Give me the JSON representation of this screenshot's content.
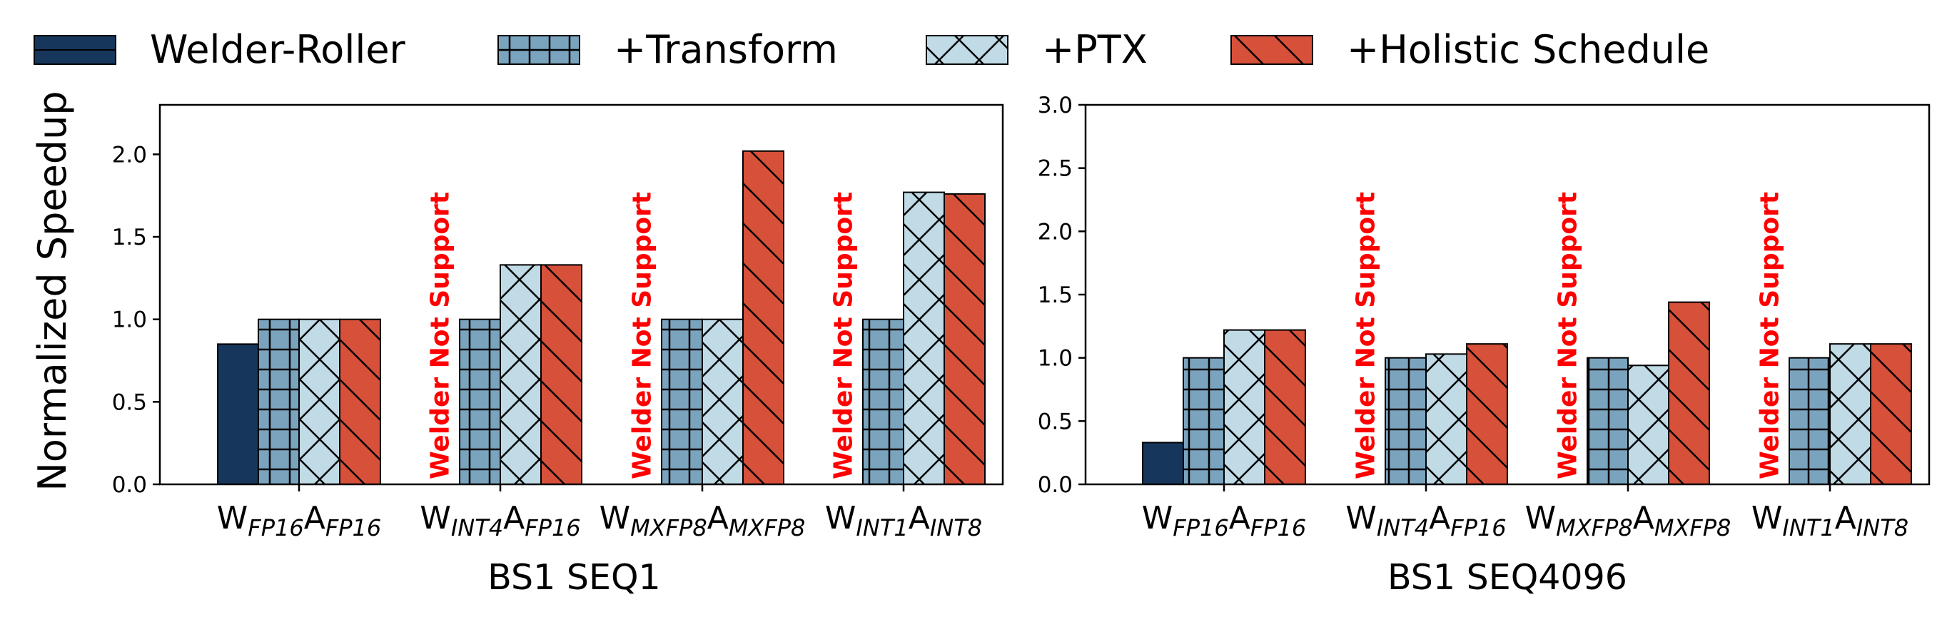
{
  "legend": [
    {
      "label": "Welder-Roller",
      "color": "#16365c",
      "pattern": "solid"
    },
    {
      "label": "+Transform",
      "color": "#7aa3be",
      "pattern": "grid"
    },
    {
      "label": "+PTX",
      "color": "#c0dae6",
      "pattern": "cross"
    },
    {
      "label": "+Holistic Schedule",
      "color": "#d6503a",
      "pattern": "diag"
    }
  ],
  "ylabel": "Normalized Speedup",
  "not_support_label": "Welder Not Support",
  "chart_data": [
    {
      "type": "bar",
      "xlabel": "BS1 SEQ1",
      "ylim": [
        0,
        2.3
      ],
      "yticks": [
        0.0,
        0.5,
        1.0,
        1.5,
        2.0
      ],
      "ytick_labels": [
        "0.0",
        "0.5",
        "1.0",
        "1.5",
        "2.0"
      ],
      "categories": [
        {
          "w": "W",
          "w_sub": "FP16",
          "a": "A",
          "a_sub": "FP16"
        },
        {
          "w": "W",
          "w_sub": "INT4",
          "a": "A",
          "a_sub": "FP16"
        },
        {
          "w": "W",
          "w_sub": "MXFP8",
          "a": "A",
          "a_sub": "MXFP8"
        },
        {
          "w": "W",
          "w_sub": "INT1",
          "a": "A",
          "a_sub": "INT8"
        }
      ],
      "series": [
        {
          "name": "Welder-Roller",
          "values": [
            0.85,
            null,
            null,
            null
          ]
        },
        {
          "name": "+Transform",
          "values": [
            1.0,
            1.0,
            1.0,
            1.0
          ]
        },
        {
          "name": "+PTX",
          "values": [
            1.0,
            1.33,
            1.0,
            1.77
          ]
        },
        {
          "name": "+Holistic Schedule",
          "values": [
            1.0,
            1.33,
            2.02,
            1.76
          ]
        }
      ],
      "not_supported": [
        1,
        2,
        3
      ]
    },
    {
      "type": "bar",
      "xlabel": "BS1 SEQ4096",
      "ylim": [
        0,
        3.0
      ],
      "yticks": [
        0.0,
        0.5,
        1.0,
        1.5,
        2.0,
        2.5,
        3.0
      ],
      "ytick_labels": [
        "0.0",
        "0.5",
        "1.0",
        "1.5",
        "2.0",
        "2.5",
        "3.0"
      ],
      "categories": [
        {
          "w": "W",
          "w_sub": "FP16",
          "a": "A",
          "a_sub": "FP16"
        },
        {
          "w": "W",
          "w_sub": "INT4",
          "a": "A",
          "a_sub": "FP16"
        },
        {
          "w": "W",
          "w_sub": "MXFP8",
          "a": "A",
          "a_sub": "MXFP8"
        },
        {
          "w": "W",
          "w_sub": "INT1",
          "a": "A",
          "a_sub": "INT8"
        }
      ],
      "series": [
        {
          "name": "Welder-Roller",
          "values": [
            0.33,
            null,
            null,
            null
          ]
        },
        {
          "name": "+Transform",
          "values": [
            1.0,
            1.0,
            1.0,
            1.0
          ]
        },
        {
          "name": "+PTX",
          "values": [
            1.22,
            1.03,
            0.94,
            1.11
          ]
        },
        {
          "name": "+Holistic Schedule",
          "values": [
            1.22,
            1.11,
            1.44,
            1.11
          ]
        }
      ],
      "not_supported": [
        1,
        2,
        3
      ]
    }
  ]
}
